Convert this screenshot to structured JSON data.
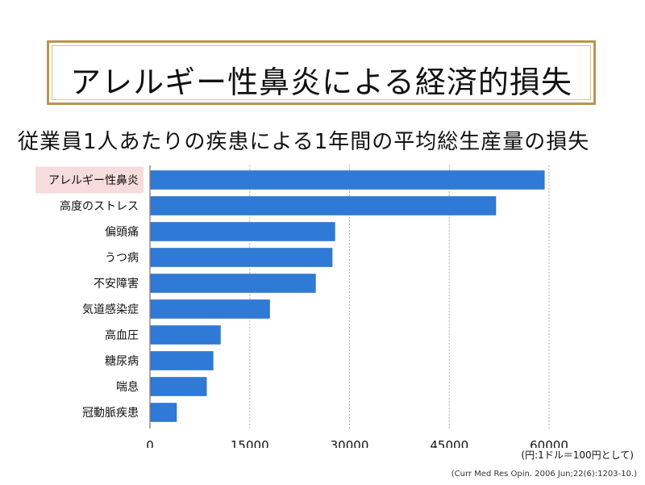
{
  "title": "アレルギー性鼻炎による経済的損失",
  "subtitle": "従業員1人あたりの疾患による1年間の平均総生産量の損失",
  "unit_note": "(円:1ドル＝100円として)",
  "citation": "(Curr Med Res Opin. 2006 Jun;22(6):1203-10.)",
  "colors": {
    "bar": "#2f7ad6",
    "highlight": "#f6dcdc",
    "frame": "#b8954f",
    "grid": "#b0b0b0"
  },
  "chart_data": {
    "type": "bar",
    "orientation": "horizontal",
    "categories": [
      "アレルギー性鼻炎",
      "高度のストレス",
      "偏頭痛",
      "うつ病",
      "不安障害",
      "気道感染症",
      "高血圧",
      "糖尿病",
      "喘息",
      "冠動脈疾患"
    ],
    "values": [
      59300,
      52000,
      27800,
      27400,
      24900,
      18000,
      10600,
      9500,
      8500,
      4000
    ],
    "xlim": [
      0,
      60000
    ],
    "xticks": [
      "0",
      "15000",
      "30000",
      "45000",
      "60000"
    ],
    "grid": true,
    "highlighted_category": "アレルギー性鼻炎"
  }
}
